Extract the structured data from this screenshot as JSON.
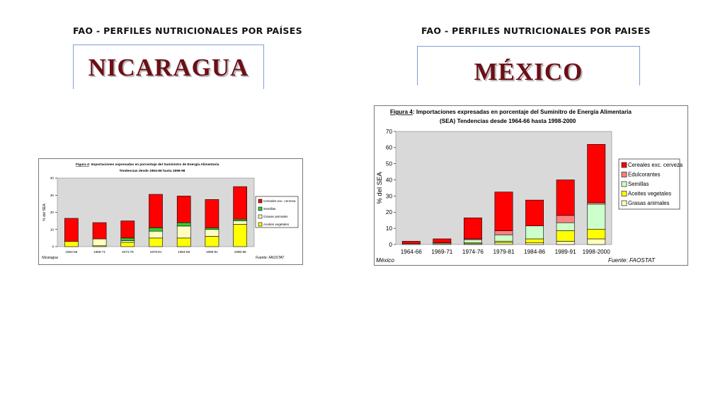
{
  "left": {
    "header": "FAO - PERFILES NUTRICIONALES POR PAÍSES",
    "country": "NICARAGUA"
  },
  "right": {
    "header": "FAO - PERFILES NUTRICIONALES POR PAISES",
    "country": "MÉXICO"
  },
  "chart_data": [
    {
      "type": "bar",
      "stacked": true,
      "title_fig": "Figura 4",
      "title": ": Importaciones expresadas en porcentaje del Suministro de Energía Alimentaria",
      "subtitle": "Tendencias desde 1964-66 hasta 1996-98",
      "ylabel": "% del SEA",
      "xlabel": "",
      "ylim": [
        0,
        40
      ],
      "yticks": [
        0,
        10,
        20,
        30,
        40
      ],
      "grid": false,
      "legend_position": "right",
      "country_label": "Nicaragua",
      "source": "Fuente: FAOSTAT",
      "categories": [
        "1964-66",
        "1969-71",
        "1974-76",
        "1979-81",
        "1984-86",
        "1989-91",
        "1996-98"
      ],
      "series": [
        {
          "name": "Aceites vegetales",
          "color": "#ffff00",
          "values": [
            3,
            0.5,
            2.5,
            5,
            5,
            6,
            13
          ]
        },
        {
          "name": "Grasas animales",
          "color": "#ffffc0",
          "values": [
            0,
            4,
            1,
            4,
            7,
            4,
            2
          ]
        },
        {
          "name": "Semillas",
          "color": "#33cc33",
          "values": [
            0,
            0,
            1.5,
            2,
            2,
            1,
            1
          ]
        },
        {
          "name": "Cereales exc. cerveza",
          "color": "#ff0000",
          "values": [
            13.5,
            9.5,
            10,
            19.5,
            15.5,
            16.5,
            19
          ]
        }
      ],
      "legend_order": [
        "Cereales exc. cerveza",
        "Semillas",
        "Grasas animales",
        "Aceites vegetales"
      ]
    },
    {
      "type": "bar",
      "stacked": true,
      "title_fig": "Figura 4",
      "title": ": Importaciones expresadas en porcentaje del Suminitro de Energía Alimentaria",
      "subtitle": "(SEA) Tendencias desde 1964-66 hasta 1998-2000",
      "ylabel": "% del SEA",
      "xlabel": "",
      "ylim": [
        0,
        70
      ],
      "yticks": [
        0,
        10,
        20,
        30,
        40,
        50,
        60,
        70
      ],
      "grid": false,
      "legend_position": "right",
      "country_label": "México",
      "source": "Fuente: FAOSTAT",
      "categories": [
        "1964-66",
        "1969-71",
        "1974-76",
        "1979-81",
        "1984-86",
        "1989-91",
        "1998-2000"
      ],
      "series": [
        {
          "name": "Grasas animales",
          "color": "#ffffc0",
          "values": [
            0.5,
            0.5,
            0.5,
            1,
            1,
            2,
            3.5
          ]
        },
        {
          "name": "Aceites vegetales",
          "color": "#ffff00",
          "values": [
            0,
            0,
            0.5,
            1,
            2.5,
            6.5,
            6
          ]
        },
        {
          "name": "Semillas",
          "color": "#ccffcc",
          "values": [
            0,
            0.5,
            2,
            4,
            8,
            5,
            15.5
          ]
        },
        {
          "name": "Edulcorantes",
          "color": "#ff8080",
          "values": [
            0,
            0,
            0.5,
            2.5,
            0,
            4.5,
            1
          ]
        },
        {
          "name": "Cereales exc. cerveza",
          "color": "#ff0000",
          "values": [
            1.5,
            2.5,
            13,
            24,
            16,
            22,
            36
          ]
        }
      ],
      "legend_order": [
        "Cereales exc. cerveza",
        "Edulcorantes",
        "Semillas",
        "Aceites vegetales",
        "Grasas animales"
      ]
    }
  ]
}
